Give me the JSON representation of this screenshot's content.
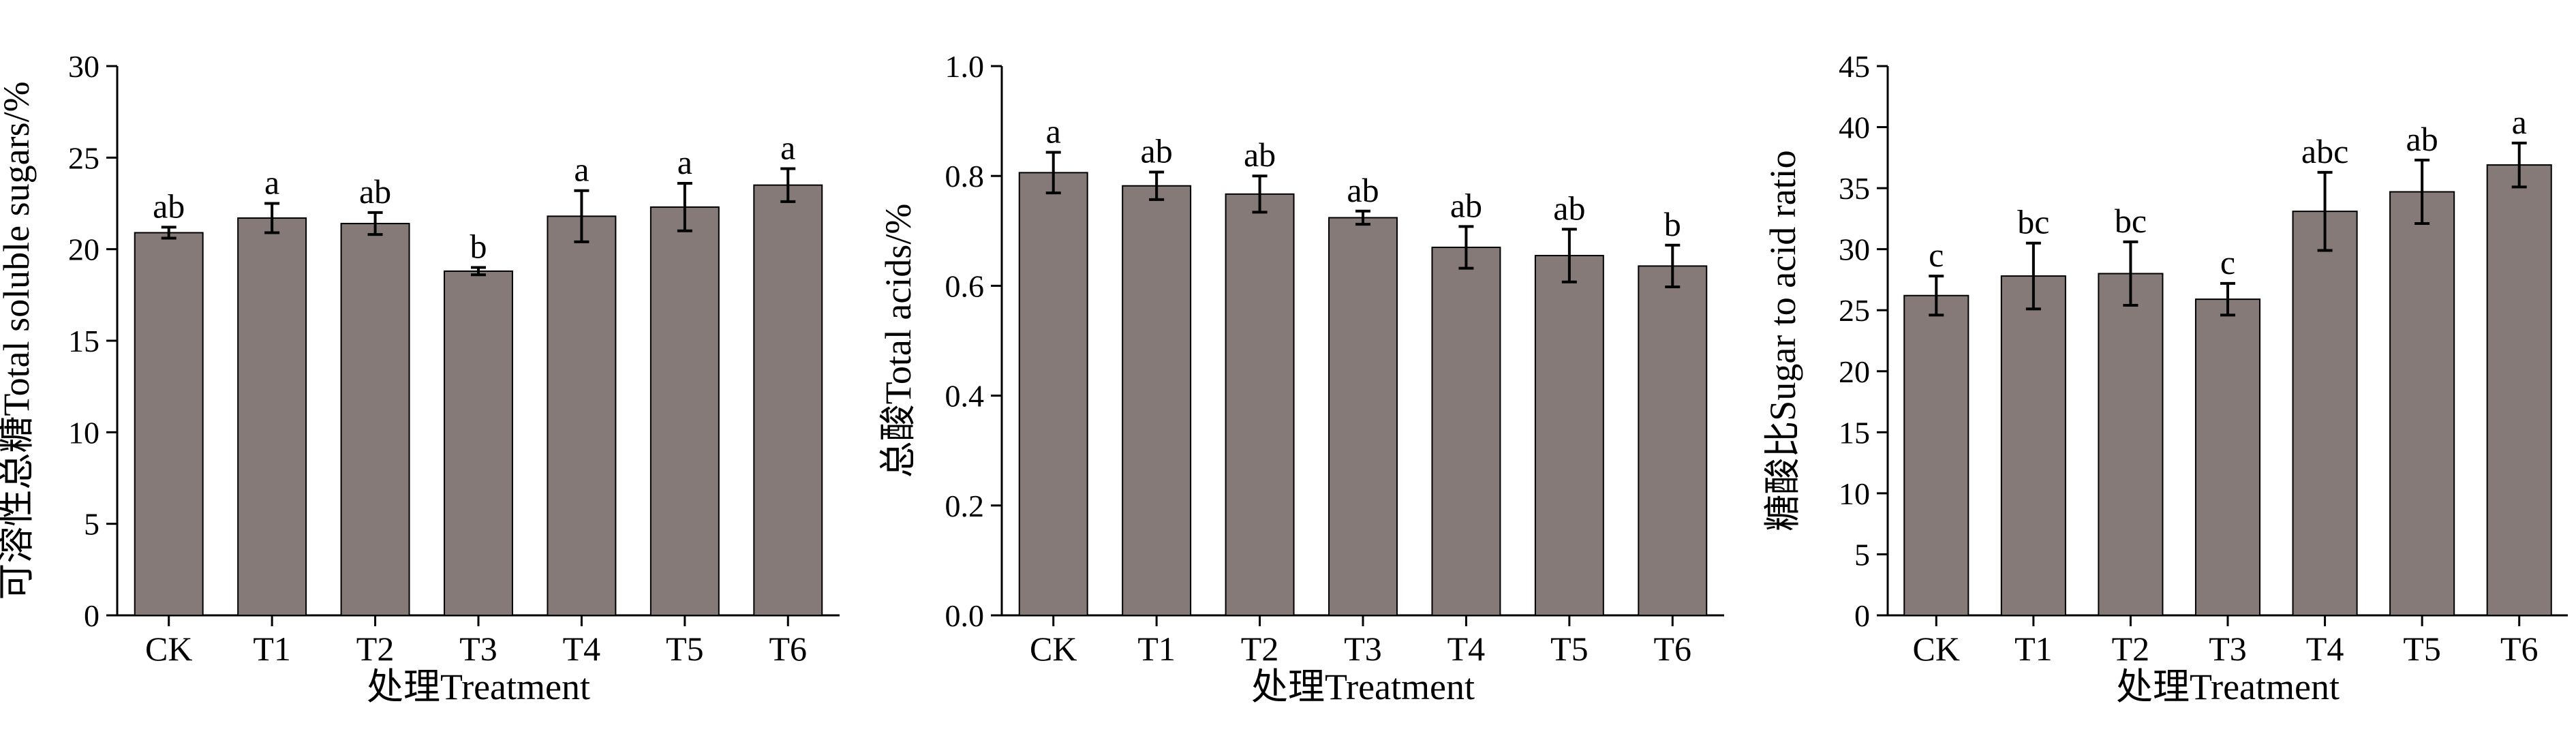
{
  "chart_data": [
    {
      "type": "bar",
      "xlabel": "处理Treatment",
      "ylabel": "可溶性总糖Total soluble sugars/%",
      "categories": [
        "CK",
        "T1",
        "T2",
        "T3",
        "T4",
        "T5",
        "T6"
      ],
      "values": [
        20.9,
        21.7,
        21.4,
        18.8,
        21.8,
        22.3,
        23.5
      ],
      "errors": [
        0.3,
        0.8,
        0.6,
        0.2,
        1.4,
        1.3,
        0.9
      ],
      "significance": [
        "ab",
        "a",
        "ab",
        "b",
        "a",
        "a",
        "a"
      ],
      "ylim": [
        0,
        30
      ],
      "yticks": [
        0,
        5,
        10,
        15,
        20,
        25,
        30
      ],
      "ytick_labels": [
        "0",
        "5",
        "10",
        "15",
        "20",
        "25",
        "30"
      ],
      "bar_color": "#857a77",
      "grid": false
    },
    {
      "type": "bar",
      "xlabel": "处理Treatment",
      "ylabel": "总酸Total acids/%",
      "categories": [
        "CK",
        "T1",
        "T2",
        "T3",
        "T4",
        "T5",
        "T6"
      ],
      "values": [
        0.806,
        0.782,
        0.767,
        0.724,
        0.67,
        0.655,
        0.636
      ],
      "errors": [
        0.037,
        0.025,
        0.033,
        0.012,
        0.038,
        0.048,
        0.038
      ],
      "significance": [
        "a",
        "ab",
        "ab",
        "ab",
        "ab",
        "ab",
        "b"
      ],
      "ylim": [
        0,
        1.0
      ],
      "yticks": [
        0,
        0.2,
        0.4,
        0.6,
        0.8,
        1.0
      ],
      "ytick_labels": [
        "0.0",
        "0.2",
        "0.4",
        "0.6",
        "0.8",
        "1.0"
      ],
      "bar_color": "#857a77",
      "grid": false
    },
    {
      "type": "bar",
      "xlabel": "处理Treatment",
      "ylabel": "糖酸比Sugar to acid ratio",
      "categories": [
        "CK",
        "T1",
        "T2",
        "T3",
        "T4",
        "T5",
        "T6"
      ],
      "values": [
        26.2,
        27.8,
        28.0,
        25.9,
        33.1,
        34.7,
        36.9
      ],
      "errors": [
        1.6,
        2.7,
        2.6,
        1.3,
        3.2,
        2.6,
        1.8
      ],
      "significance": [
        "c",
        "bc",
        "bc",
        "c",
        "abc",
        "ab",
        "a"
      ],
      "ylim": [
        0,
        45
      ],
      "yticks": [
        0,
        5,
        10,
        15,
        20,
        25,
        30,
        35,
        40,
        45
      ],
      "ytick_labels": [
        "0",
        "5",
        "10",
        "15",
        "20",
        "25",
        "30",
        "35",
        "40",
        "45"
      ],
      "bar_color": "#857a77",
      "grid": false
    }
  ]
}
